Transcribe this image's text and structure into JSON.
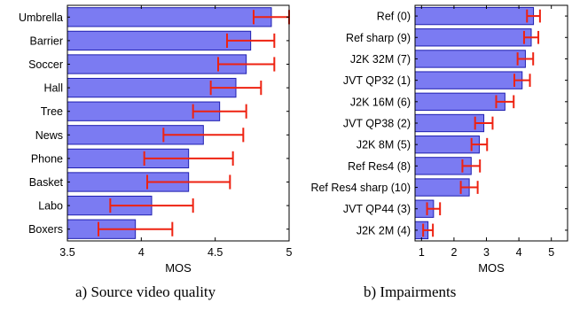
{
  "colors": {
    "bar_fill": "#7b7bf2",
    "bar_stroke": "#1f1fb0",
    "error_bar": "#ee2211",
    "axis": "#000000"
  },
  "captions": {
    "left": "a) Source video quality",
    "right": "b) Impairments"
  },
  "chart_data": [
    {
      "type": "bar",
      "orientation": "horizontal",
      "title": "",
      "xlabel": "MOS",
      "ylabel": "",
      "xlim": [
        3.5,
        5
      ],
      "xticks": [
        3.5,
        4,
        4.5,
        5
      ],
      "xtick_labels": [
        "3.5",
        "4",
        "4.5",
        "5"
      ],
      "categories": [
        "Umbrella",
        "Barrier",
        "Soccer",
        "Hall",
        "Tree",
        "News",
        "Phone",
        "Basket",
        "Labo",
        "Boxers"
      ],
      "values": [
        4.88,
        4.74,
        4.71,
        4.64,
        4.53,
        4.42,
        4.32,
        4.32,
        4.07,
        3.96
      ],
      "error": [
        0.12,
        0.16,
        0.19,
        0.17,
        0.18,
        0.27,
        0.3,
        0.28,
        0.28,
        0.25
      ],
      "grid": false,
      "legend": false
    },
    {
      "type": "bar",
      "orientation": "horizontal",
      "title": "",
      "xlabel": "MOS",
      "ylabel": "",
      "xlim": [
        0.8,
        5.5
      ],
      "xticks": [
        1,
        2,
        3,
        4,
        5
      ],
      "xtick_labels": [
        "1",
        "2",
        "3",
        "4",
        "5"
      ],
      "categories": [
        "Ref (0)",
        "Ref sharp (9)",
        "J2K 32M (7)",
        "JVT QP32 (1)",
        "J2K 16M (6)",
        "JVT QP38 (2)",
        "J2K 8M (5)",
        "Ref Res4 (8)",
        "Ref Res4 sharp (10)",
        "JVT QP44 (3)",
        "J2K 2M (4)"
      ],
      "values": [
        4.45,
        4.38,
        4.2,
        4.1,
        3.57,
        2.92,
        2.78,
        2.53,
        2.47,
        1.37,
        1.2
      ],
      "error": [
        0.2,
        0.22,
        0.24,
        0.24,
        0.27,
        0.27,
        0.24,
        0.27,
        0.26,
        0.2,
        0.15
      ],
      "grid": false,
      "legend": false
    }
  ]
}
